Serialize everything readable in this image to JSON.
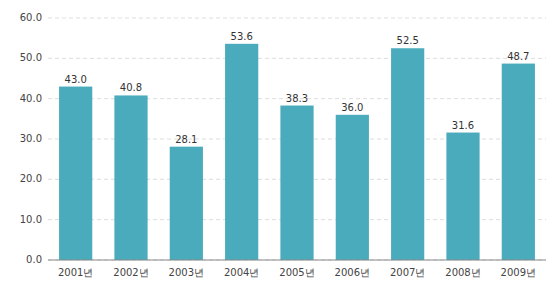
{
  "chart_data": {
    "type": "bar",
    "categories": [
      "2001년",
      "2002년",
      "2003년",
      "2004년",
      "2005년",
      "2006년",
      "2007년",
      "2008년",
      "2009년"
    ],
    "values": [
      43.0,
      40.8,
      28.1,
      53.6,
      38.3,
      36.0,
      52.5,
      31.6,
      48.7
    ],
    "value_labels": [
      "43.0",
      "40.8",
      "28.1",
      "53.6",
      "38.3",
      "36.0",
      "52.5",
      "31.6",
      "48.7"
    ],
    "data_labels": true,
    "color": "#4aabbc",
    "ylim": [
      0,
      60
    ],
    "yticks": [
      {
        "value": 0.0,
        "label": "0.0"
      },
      {
        "value": 10.0,
        "label": "10.0"
      },
      {
        "value": 20.0,
        "label": "20.0"
      },
      {
        "value": 30.0,
        "label": "30.0"
      },
      {
        "value": 40.0,
        "label": "40.0"
      },
      {
        "value": 50.0,
        "label": "50.0"
      },
      {
        "value": 60.0,
        "label": "60.0"
      }
    ],
    "grid": true
  }
}
